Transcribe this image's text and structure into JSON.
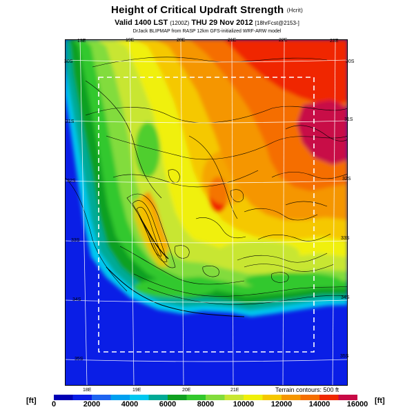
{
  "header": {
    "title": "Height of Critical Updraft Strength",
    "title_suffix": "(Hcrit)",
    "subtitle": "Valid 1400 LST",
    "subtitle_code": "(1200Z)",
    "subtitle_date": "THU 29 Nov 2012",
    "subtitle_run": "[18hrFcst@2153-]",
    "credit": "DrJack BLIPMAP from RASP 12km GFS-initialized WRF-ARW model"
  },
  "map": {
    "lon_labels_top": [
      "18E",
      "19E",
      "20E",
      "21E",
      "22E",
      "23E"
    ],
    "lon_labels_bottom": [
      "18E",
      "19E",
      "20E",
      "21E"
    ],
    "lat_labels_left": [
      "30S",
      "31S",
      "32S",
      "33S",
      "34S",
      "35S"
    ],
    "lat_labels_right": [
      "30S",
      "31S",
      "32S",
      "33S",
      "34S",
      "35S"
    ],
    "terrain_note": "Terrain contours: 500 ft",
    "colors": {
      "sea": "#0a1ee6",
      "cyan": "#00c8f0",
      "teal": "#00aa96",
      "green_dark": "#0fa020",
      "green": "#32c82d",
      "green_light": "#82dc3c",
      "yellow_green": "#c8e632",
      "yellow": "#f0f00a",
      "gold": "#f5c800",
      "orange": "#f59600",
      "orange_red": "#f56e00",
      "red": "#f02800",
      "crimson": "#c80a46"
    }
  },
  "colorbar": {
    "unit": "[ft]",
    "ticks": [
      "0",
      "2000",
      "4000",
      "6000",
      "8000",
      "10000",
      "12000",
      "14000",
      "16000"
    ],
    "colors": [
      "#0000b4",
      "#0a1ee6",
      "#1e64f0",
      "#00a0f0",
      "#00c8f0",
      "#00aa96",
      "#0fa020",
      "#32c82d",
      "#82dc3c",
      "#c8e632",
      "#f0f00a",
      "#f5c800",
      "#f59600",
      "#f56e00",
      "#f02800",
      "#c80a46"
    ]
  }
}
